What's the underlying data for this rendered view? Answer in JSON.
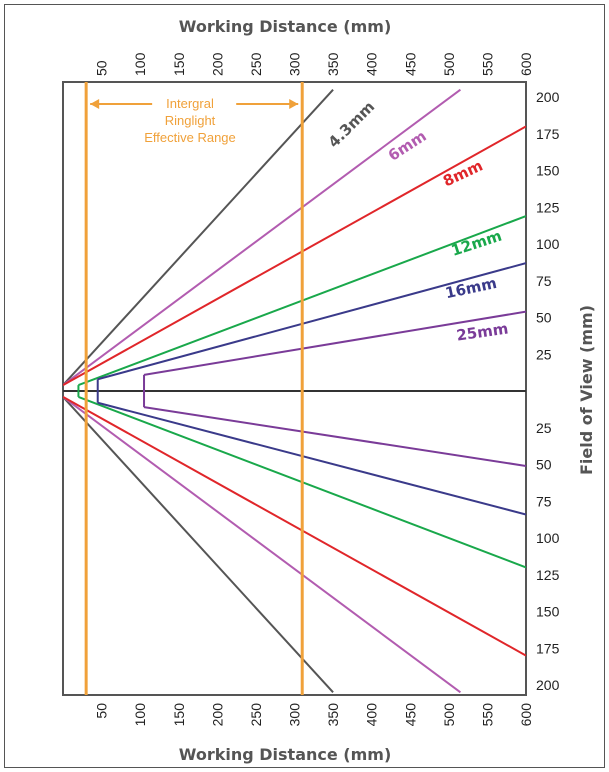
{
  "chart_data": {
    "type": "line",
    "title": "",
    "xlabel_top": "Working Distance (mm)",
    "xlabel_bottom": "Working Distance (mm)",
    "ylabel": "Field of View (mm)",
    "x_ticks": [
      50,
      100,
      150,
      200,
      250,
      300,
      350,
      400,
      450,
      500,
      550,
      600
    ],
    "x_tick_labels": [
      "50",
      "100",
      "150",
      "200",
      "250",
      "300",
      "350",
      "400",
      "450",
      "500",
      "550",
      "600"
    ],
    "y_ticks_upper": [
      200,
      175,
      150,
      125,
      100,
      75,
      50,
      25
    ],
    "y_ticks_lower": [
      25,
      50,
      75,
      100,
      125,
      150,
      175,
      200
    ],
    "y_tick_labels_upper": [
      "200",
      "175",
      "150",
      "125",
      "100",
      "75",
      "50",
      "25"
    ],
    "y_tick_labels_lower": [
      "25",
      "50",
      "75",
      "100",
      "125",
      "150",
      "175",
      "200"
    ],
    "xlim": [
      0,
      600
    ],
    "ylim": [
      -205,
      205
    ],
    "grid": false,
    "ringlight": {
      "x_range": [
        30,
        310
      ],
      "color": "#f0a13a",
      "label_lines": [
        "Intergral",
        "Ringlight",
        "Effective Range"
      ]
    },
    "series": [
      {
        "name": "4.3mm",
        "color": "#555555",
        "sensor_half": 4,
        "fov_half_at_350": 204,
        "fov_half_at_0": 0
      },
      {
        "name": "6mm",
        "color": "#b25cb0",
        "sensor_half": 4,
        "fov_half_at_600": 205
      },
      {
        "name": "8mm",
        "color": "#e0262a",
        "sensor_half": 4,
        "fov_half_at_600": 180
      },
      {
        "name": "12mm",
        "color": "#19a84b",
        "sensor_half": 4,
        "fov_half_at_600": 119
      },
      {
        "name": "16mm",
        "color": "#3a3a8a",
        "sensor_half": 4,
        "fov_half_at_600": 87
      },
      {
        "name": "25mm",
        "color": "#7a3b98",
        "sensor_half": 4,
        "fov_half_at_600": 54
      }
    ],
    "lines": [
      {
        "name": "4.3mm",
        "color": "#555555",
        "upper": [
          [
            0,
            4
          ],
          [
            350,
            205
          ]
        ],
        "lower": [
          [
            0,
            -4
          ],
          [
            350,
            -205
          ]
        ],
        "mount": null
      },
      {
        "name": "6mm",
        "color": "#b25cb0",
        "upper": [
          [
            0,
            4
          ],
          [
            515,
            205
          ]
        ],
        "lower": [
          [
            0,
            -4
          ],
          [
            515,
            -205
          ]
        ],
        "mount": null
      },
      {
        "name": "8mm",
        "color": "#e0262a",
        "upper": [
          [
            0,
            4
          ],
          [
            600,
            180
          ]
        ],
        "lower": [
          [
            0,
            -4
          ],
          [
            600,
            -180
          ]
        ],
        "mount": null
      },
      {
        "name": "12mm",
        "color": "#19a84b",
        "upper": [
          [
            20,
            4
          ],
          [
            600,
            119
          ]
        ],
        "lower": [
          [
            20,
            -4
          ],
          [
            600,
            -120
          ]
        ],
        "mount": [
          [
            20,
            4
          ],
          [
            20,
            -4
          ]
        ]
      },
      {
        "name": "16mm",
        "color": "#3a3a8a",
        "upper": [
          [
            45,
            8
          ],
          [
            600,
            87
          ]
        ],
        "lower": [
          [
            45,
            -8
          ],
          [
            600,
            -84
          ]
        ],
        "mount": [
          [
            45,
            8
          ],
          [
            45,
            -8
          ]
        ]
      },
      {
        "name": "25mm",
        "color": "#7a3b98",
        "upper": [
          [
            105,
            11
          ],
          [
            600,
            54
          ]
        ],
        "lower": [
          [
            105,
            -11
          ],
          [
            600,
            -51
          ]
        ],
        "mount": [
          [
            105,
            11
          ],
          [
            105,
            -11
          ]
        ]
      }
    ]
  }
}
